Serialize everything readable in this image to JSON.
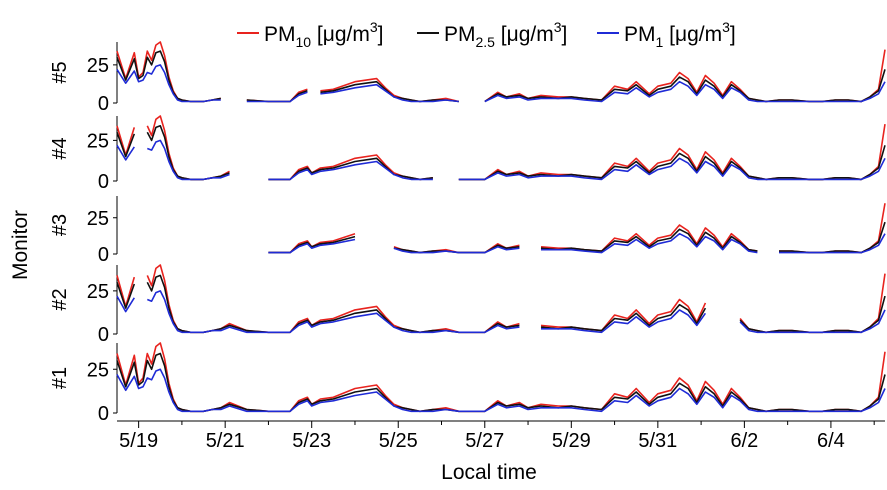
{
  "chart_data": {
    "type": "line",
    "xlabel": "Local time",
    "ylabel": "Monitor",
    "x_ticks": [
      "5/19",
      "5/21",
      "5/23",
      "5/25",
      "5/27",
      "5/29",
      "5/31",
      "6/2",
      "6/4"
    ],
    "x_range_days": [
      "5/18 12:00",
      "6/5 06:00"
    ],
    "panel_ylim": [
      0,
      40
    ],
    "panel_yticks": [
      0,
      25
    ],
    "legend": {
      "position": "top",
      "entries": [
        {
          "base": "PM",
          "sub": "10",
          "unit": " [μg/m",
          "sup": "3",
          "close": "]",
          "color": "#e8231e"
        },
        {
          "base": "PM",
          "sub": "2.5",
          "unit": " [μg/m",
          "sup": "3",
          "close": "]",
          "color": "#111111"
        },
        {
          "base": "PM",
          "sub": "1",
          "unit": " [μg/m",
          "sup": "3",
          "close": "]",
          "color": "#1f2bd6"
        }
      ]
    },
    "panels": [
      {
        "name": "#5",
        "data_start": "5/18 12:00",
        "gaps": [
          [
            "5/21 00:00",
            "5/21 04:00"
          ],
          [
            "5/23 00:00",
            "5/23 03:00"
          ],
          [
            "5/26 12:00",
            "5/26 20:00"
          ]
        ]
      },
      {
        "name": "#4",
        "data_start": "5/18 12:00",
        "gaps": [
          [
            "5/19 00:00",
            "5/19 03:00"
          ],
          [
            "5/21 12:00",
            "5/21 20:00"
          ],
          [
            "5/26 00:00",
            "5/26 06:00"
          ]
        ]
      },
      {
        "name": "#3",
        "data_start": "5/22 00:00",
        "gaps": [
          [
            "5/24 12:00",
            "5/24 18:00"
          ],
          [
            "5/28 00:00",
            "5/28 04:00"
          ],
          [
            "6/2 12:00",
            "6/2 18:00"
          ]
        ]
      },
      {
        "name": "#2",
        "data_start": "5/18 12:00",
        "gaps": [
          [
            "5/19 00:00",
            "5/19 03:00"
          ],
          [
            "5/28 00:00",
            "5/28 06:00"
          ],
          [
            "6/1 06:00",
            "6/1 18:00"
          ]
        ]
      },
      {
        "name": "#1",
        "data_start": "5/18 12:00",
        "gaps": []
      }
    ],
    "series": [
      {
        "name": "PM10",
        "color": "#e8231e",
        "x_days": [
          0.0,
          0.2,
          0.4,
          0.5,
          0.6,
          0.7,
          0.8,
          0.9,
          1.0,
          1.1,
          1.2,
          1.3,
          1.4,
          1.5,
          1.7,
          1.9,
          2.0,
          2.2,
          2.4,
          2.6,
          3.0,
          3.5,
          4.0,
          4.2,
          4.4,
          4.5,
          4.7,
          5.0,
          5.5,
          6.0,
          6.2,
          6.4,
          6.6,
          6.8,
          7.0,
          7.3,
          7.6,
          7.9,
          8.2,
          8.5,
          8.8,
          9.0,
          9.3,
          9.5,
          9.8,
          10.2,
          10.5,
          10.8,
          11.2,
          11.5,
          11.8,
          12.0,
          12.3,
          12.5,
          12.8,
          13.0,
          13.2,
          13.4,
          13.6,
          13.8,
          14.0,
          14.2,
          14.4,
          14.6,
          14.8,
          15.0,
          15.3,
          15.6,
          16.0,
          16.3,
          16.6,
          16.9,
          17.2,
          17.4,
          17.6,
          17.75
        ],
        "values": [
          34,
          16,
          33,
          17,
          20,
          34,
          28,
          38,
          40,
          31,
          17,
          8,
          3,
          2,
          1,
          1,
          1,
          2,
          3,
          6,
          2,
          1,
          1,
          7,
          9,
          5,
          8,
          9,
          14,
          16,
          10,
          5,
          3,
          2,
          1,
          2,
          3,
          1,
          1,
          1,
          7,
          4,
          6,
          3,
          5,
          4,
          4,
          3,
          2,
          11,
          9,
          14,
          6,
          11,
          13,
          20,
          16,
          7,
          18,
          13,
          5,
          14,
          9,
          3,
          2,
          1,
          2,
          2,
          1,
          1,
          2,
          2,
          1,
          4,
          9,
          35
        ]
      },
      {
        "name": "PM2.5",
        "color": "#111111",
        "x_days": [
          0.0,
          0.2,
          0.4,
          0.5,
          0.6,
          0.7,
          0.8,
          0.9,
          1.0,
          1.1,
          1.2,
          1.3,
          1.4,
          1.5,
          1.7,
          1.9,
          2.0,
          2.2,
          2.4,
          2.6,
          3.0,
          3.5,
          4.0,
          4.2,
          4.4,
          4.5,
          4.7,
          5.0,
          5.5,
          6.0,
          6.2,
          6.4,
          6.6,
          6.8,
          7.0,
          7.3,
          7.6,
          7.9,
          8.2,
          8.5,
          8.8,
          9.0,
          9.3,
          9.5,
          9.8,
          10.2,
          10.5,
          10.8,
          11.2,
          11.5,
          11.8,
          12.0,
          12.3,
          12.5,
          12.8,
          13.0,
          13.2,
          13.4,
          13.6,
          13.8,
          14.0,
          14.2,
          14.4,
          14.6,
          14.8,
          15.0,
          15.3,
          15.6,
          16.0,
          16.3,
          16.6,
          16.9,
          17.2,
          17.4,
          17.6,
          17.75
        ],
        "values": [
          30,
          15,
          29,
          16,
          18,
          30,
          25,
          33,
          34,
          27,
          15,
          7,
          3,
          2,
          1,
          1,
          1,
          2,
          3,
          5,
          2,
          1,
          1,
          6,
          8,
          5,
          7,
          8,
          12,
          14,
          9,
          4,
          3,
          2,
          1,
          2,
          2,
          1,
          1,
          1,
          6,
          4,
          5,
          3,
          4,
          3,
          4,
          3,
          2,
          9,
          8,
          12,
          5,
          9,
          11,
          17,
          14,
          6,
          15,
          11,
          4,
          12,
          8,
          3,
          2,
          1,
          2,
          2,
          1,
          1,
          2,
          2,
          1,
          4,
          8,
          22
        ]
      },
      {
        "name": "PM1",
        "color": "#1f2bd6",
        "x_days": [
          0.0,
          0.2,
          0.4,
          0.5,
          0.6,
          0.7,
          0.8,
          0.9,
          1.0,
          1.1,
          1.2,
          1.3,
          1.4,
          1.5,
          1.7,
          1.9,
          2.0,
          2.2,
          2.4,
          2.6,
          3.0,
          3.5,
          4.0,
          4.2,
          4.4,
          4.5,
          4.7,
          5.0,
          5.5,
          6.0,
          6.2,
          6.4,
          6.6,
          6.8,
          7.0,
          7.3,
          7.6,
          7.9,
          8.2,
          8.5,
          8.8,
          9.0,
          9.3,
          9.5,
          9.8,
          10.2,
          10.5,
          10.8,
          11.2,
          11.5,
          11.8,
          12.0,
          12.3,
          12.5,
          12.8,
          13.0,
          13.2,
          13.4,
          13.6,
          13.8,
          14.0,
          14.2,
          14.4,
          14.6,
          14.8,
          15.0,
          15.3,
          15.6,
          16.0,
          16.3,
          16.6,
          16.9,
          17.2,
          17.4,
          17.6,
          17.75
        ],
        "values": [
          22,
          13,
          21,
          14,
          15,
          20,
          19,
          24,
          25,
          20,
          12,
          6,
          2,
          1,
          1,
          1,
          1,
          2,
          2,
          4,
          1,
          1,
          1,
          5,
          7,
          4,
          6,
          7,
          10,
          12,
          8,
          4,
          2,
          1,
          1,
          1,
          2,
          1,
          1,
          1,
          5,
          3,
          4,
          2,
          3,
          3,
          3,
          2,
          1,
          7,
          6,
          10,
          4,
          7,
          9,
          14,
          11,
          5,
          12,
          9,
          3,
          10,
          7,
          2,
          1,
          1,
          1,
          1,
          1,
          1,
          1,
          1,
          1,
          3,
          6,
          14
        ]
      }
    ]
  }
}
